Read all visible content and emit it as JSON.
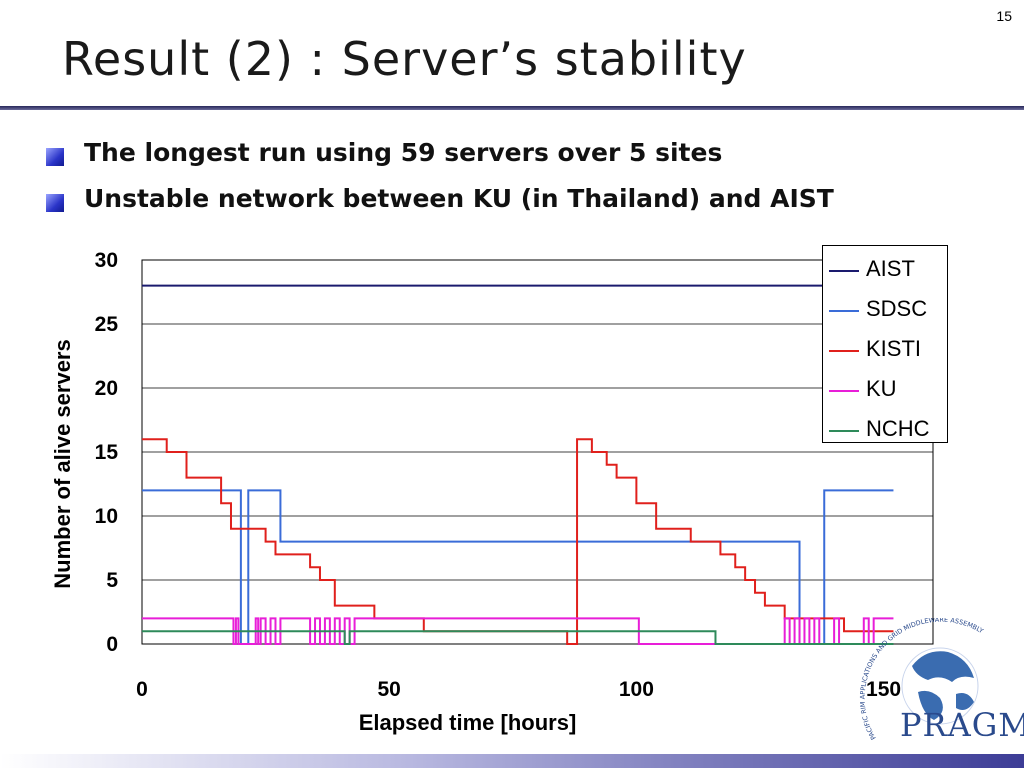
{
  "page_number": "15",
  "title": "Result (2) : Server’s stability",
  "bullets": [
    "The longest run using 59 servers over 5 sites",
    "Unstable network between KU (in Thailand) and AIST"
  ],
  "logo": {
    "wordmark": "PRAGMA",
    "arc_text": "PACIFIC RIM APPLICATIONS AND GRID MIDDLEWARE ASSEMBLY"
  },
  "colors": {
    "AIST": "#1a1a6e",
    "SDSC": "#3a6cd8",
    "KISTI": "#e0201c",
    "KU": "#e81ed8",
    "NCHC": "#2e8a5a"
  },
  "chart_data": {
    "type": "line",
    "xlabel": "Elapsed time [hours]",
    "ylabel": "Number of alive servers",
    "xlim": [
      0,
      160
    ],
    "ylim": [
      0,
      30
    ],
    "xticks": [
      0,
      50,
      100,
      150
    ],
    "yticks": [
      0,
      5,
      10,
      15,
      20,
      25,
      30
    ],
    "grid": "horizontal",
    "legend_position": "top-right",
    "series": [
      {
        "name": "AIST",
        "step": true,
        "x": [
          0,
          152
        ],
        "y": [
          28,
          28
        ]
      },
      {
        "name": "SDSC",
        "step": true,
        "x": [
          0,
          19.5,
          20,
          21.5,
          22,
          28,
          83,
          133,
          138,
          152
        ],
        "y": [
          12,
          12,
          0,
          12,
          12,
          8,
          8,
          0,
          12,
          12
        ]
      },
      {
        "name": "KISTI",
        "step": true,
        "x": [
          0,
          5,
          9,
          16,
          18,
          25,
          27,
          34,
          36,
          39,
          42,
          46,
          47,
          55,
          57,
          85,
          86,
          88,
          91,
          94,
          96,
          100,
          104,
          111,
          115,
          117,
          120,
          122,
          124,
          126,
          128,
          130,
          134,
          136,
          142,
          148,
          152
        ],
        "y": [
          16,
          15,
          13,
          11,
          9,
          8,
          7,
          6,
          5,
          3,
          3,
          3,
          2,
          2,
          1,
          1,
          0,
          16,
          15,
          14,
          13,
          11,
          9,
          8,
          8,
          7,
          6,
          5,
          4,
          3,
          3,
          2,
          2,
          2,
          1,
          1,
          1
        ]
      },
      {
        "name": "KU",
        "step": true,
        "x": [
          0,
          18,
          18.5,
          19,
          19.5,
          23,
          23.5,
          24,
          25,
          26,
          27,
          28,
          29,
          30,
          34,
          35,
          36,
          37,
          38,
          39,
          40,
          41,
          42,
          43,
          46,
          47,
          100,
          100.5,
          130,
          131,
          132,
          133,
          134,
          135,
          136,
          137,
          140,
          141,
          146,
          147,
          148,
          152
        ],
        "y": [
          2,
          2,
          0,
          2,
          0,
          2,
          0,
          2,
          0,
          2,
          0,
          2,
          2,
          2,
          0,
          2,
          0,
          2,
          0,
          2,
          0,
          2,
          0,
          2,
          2,
          2,
          2,
          0,
          2,
          0,
          2,
          0,
          2,
          0,
          2,
          0,
          2,
          0,
          2,
          0,
          2,
          2
        ]
      },
      {
        "name": "NCHC",
        "step": true,
        "x": [
          0,
          40,
          41,
          42,
          115,
          116,
          152
        ],
        "y": [
          1,
          1,
          0,
          1,
          1,
          0,
          0
        ]
      }
    ]
  }
}
